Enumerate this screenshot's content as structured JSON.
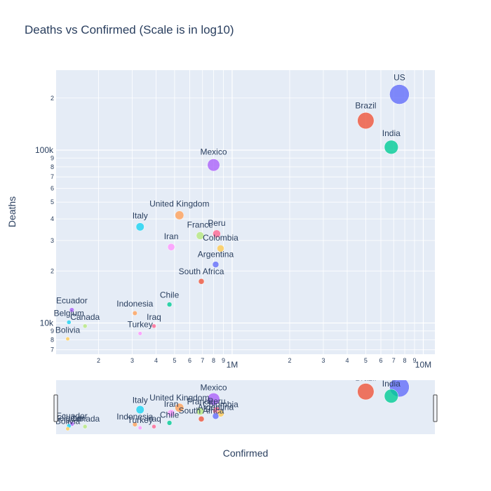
{
  "chart_data": {
    "type": "scatter",
    "title": "Deaths vs Confirmed (Scale is in log10)",
    "xlabel": "Confirmed",
    "ylabel": "Deaths",
    "x_scale": "log",
    "y_scale": "log",
    "xlim": [
      120000,
      11500000
    ],
    "ylim": [
      6600,
      290000
    ],
    "grid": true,
    "legend": "none",
    "points": [
      {
        "name": "US",
        "x": 7500000,
        "y": 210000,
        "color": "#636efa"
      },
      {
        "name": "Brazil",
        "x": 5000000,
        "y": 148000,
        "color": "#ef553b"
      },
      {
        "name": "India",
        "x": 6800000,
        "y": 104000,
        "color": "#00cc96"
      },
      {
        "name": "Mexico",
        "x": 800000,
        "y": 82000,
        "color": "#ab63fa"
      },
      {
        "name": "United Kingdom",
        "x": 530000,
        "y": 42000,
        "color": "#ffa15a"
      },
      {
        "name": "Italy",
        "x": 330000,
        "y": 36000,
        "color": "#19d3f3"
      },
      {
        "name": "France",
        "x": 680000,
        "y": 32000,
        "color": "#b6e880"
      },
      {
        "name": "Peru",
        "x": 830000,
        "y": 32800,
        "color": "#ff6692"
      },
      {
        "name": "Iran",
        "x": 480000,
        "y": 27500,
        "color": "#ff97ff"
      },
      {
        "name": "Colombia",
        "x": 870000,
        "y": 27000,
        "color": "#fecb52"
      },
      {
        "name": "Argentina",
        "x": 820000,
        "y": 21800,
        "color": "#636efa"
      },
      {
        "name": "South Africa",
        "x": 690000,
        "y": 17400,
        "color": "#ef553b"
      },
      {
        "name": "Chile",
        "x": 470000,
        "y": 12800,
        "color": "#00cc96"
      },
      {
        "name": "Ecuador",
        "x": 145000,
        "y": 11900,
        "color": "#ab63fa"
      },
      {
        "name": "Indonesia",
        "x": 310000,
        "y": 11400,
        "color": "#ffa15a"
      },
      {
        "name": "Belgium",
        "x": 140000,
        "y": 10100,
        "color": "#19d3f3"
      },
      {
        "name": "Canada",
        "x": 170000,
        "y": 9600,
        "color": "#b6e880"
      },
      {
        "name": "Iraq",
        "x": 390000,
        "y": 9600,
        "color": "#ff6692"
      },
      {
        "name": "Turkey",
        "x": 330000,
        "y": 8700,
        "color": "#ff97ff"
      },
      {
        "name": "Bolivia",
        "x": 138000,
        "y": 8100,
        "color": "#fecb52"
      }
    ],
    "x_tick_labels": [
      "1M",
      "10M"
    ],
    "y_tick_labels": [
      "10k",
      "100k"
    ]
  }
}
